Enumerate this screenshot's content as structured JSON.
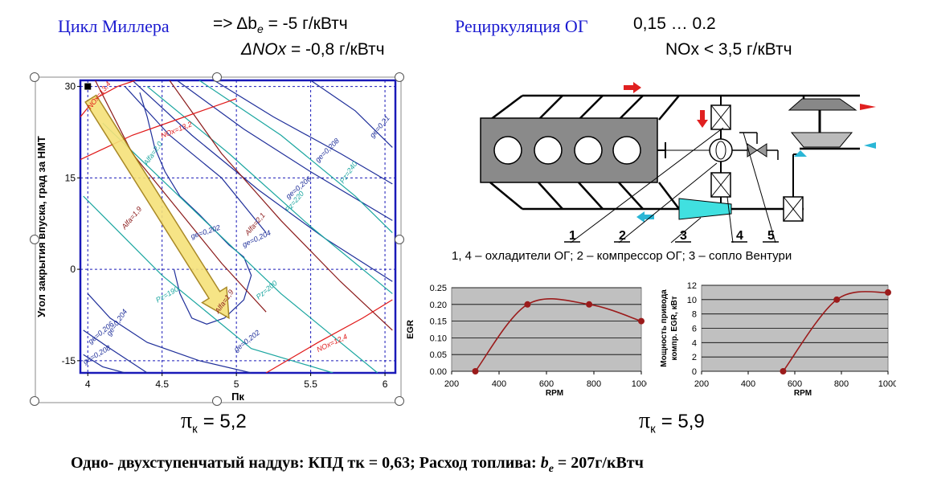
{
  "header": {
    "miller": "Цикл Миллера",
    "miller_arrow": "=>",
    "be_delta": "Δb",
    "be_sub": "e",
    "be_value": "= -5 г/кВтч",
    "nox_delta": "ΔNOx",
    "nox_value": "= -0,8 г/кВтч",
    "egr_title": "Рециркуляция ОГ",
    "egr_range": "0,15 … 0.2",
    "nox_limit": "NOx < 3,5 г/кВтч"
  },
  "diagram": {
    "numbers": [
      "1",
      "2",
      "3",
      "4",
      "5"
    ],
    "caption": "1, 4 – охладители ОГ; 2 – компрессор ОГ; 3 – сопло Вентури"
  },
  "pi_left": {
    "sym": "π",
    "sub": "к",
    "value": "= 5,2"
  },
  "pi_right": {
    "sym": "π",
    "sub": "к",
    "value": "= 5,9"
  },
  "footer": {
    "prefix": "Одно- двухступенчатый наддув: КПД тк = 0,63; Расход топлива: ",
    "b": "b",
    "sub": "e",
    "value": " = 207г/кВтч"
  },
  "chart_data": [
    {
      "type": "line",
      "chart": "contour",
      "xlabel": "Пк",
      "ylabel": "Угол закрытия впуска, град за НМТ",
      "xlim": [
        3.95,
        6.07
      ],
      "ylim": [
        -17,
        31
      ],
      "x_ticks": [
        4,
        4.5,
        5,
        5.5,
        6
      ],
      "x_tick_labels": [
        "4",
        "4.5",
        "5",
        "5.5",
        "6"
      ],
      "y_ticks": [
        30,
        15,
        0,
        -15
      ],
      "y_tick_labels": [
        "30",
        "15",
        "0",
        "-15"
      ],
      "grid": true,
      "colors": {
        "ge": "#1f2f9a",
        "pz": "#1ba6a0",
        "alfa": "#8b1a1a",
        "nox": "#e01818",
        "arrow": "#f6e27a"
      },
      "series": [
        {
          "name": "ge=0,21",
          "group": "ge",
          "x": [
            5.5,
            5.8,
            6.05
          ],
          "y": [
            31,
            26,
            20
          ]
        },
        {
          "name": "ge=0,208",
          "group": "ge",
          "x": [
            4.85,
            5.25,
            5.7,
            6.05
          ],
          "y": [
            31,
            25,
            19,
            14
          ]
        },
        {
          "name": "ge=0,206",
          "group": "ge",
          "x": [
            4.6,
            5.05,
            5.5,
            6.05
          ],
          "y": [
            31,
            23,
            16,
            8
          ]
        },
        {
          "name": "ge=0,204",
          "group": "ge",
          "x": [
            4.3,
            4.7,
            5.15,
            5.6,
            6.05
          ],
          "y": [
            31,
            22,
            13,
            5,
            -2
          ]
        },
        {
          "name": "ge=0,202",
          "group": "ge",
          "x": [
            4.25,
            4.55,
            4.9,
            5.2
          ],
          "y": [
            30,
            22,
            15,
            6
          ]
        },
        {
          "name": "ge=0,204",
          "group": "ge",
          "x": [
            4.0,
            4.15,
            4.4,
            4.75,
            5.1
          ],
          "y": [
            -4,
            -8,
            -12,
            -15,
            -17
          ]
        },
        {
          "name": "ge=0,206",
          "group": "ge",
          "x": [
            3.97,
            4.15,
            4.4
          ],
          "y": [
            -10,
            -13,
            -17
          ]
        },
        {
          "name": "ge=0,208",
          "group": "ge",
          "x": [
            3.97,
            4.1,
            4.25
          ],
          "y": [
            -14,
            -16,
            -17
          ]
        },
        {
          "name": "ge=0,202",
          "group": "ge",
          "x": [
            4.35,
            4.4,
            4.45,
            4.52,
            4.62,
            4.75,
            4.87,
            4.95,
            5.05,
            5.1,
            5.05,
            4.92,
            4.8,
            4.7,
            4.62,
            4.58
          ],
          "y": [
            29,
            25,
            20,
            16,
            12,
            9,
            6,
            4,
            2,
            -1,
            -5,
            -8,
            -9,
            -8,
            -4,
            0
          ]
        },
        {
          "name": "Pz=240",
          "group": "pz",
          "x": [
            4.75,
            5.3,
            5.8,
            6.05
          ],
          "y": [
            31,
            22,
            12,
            6
          ]
        },
        {
          "name": "Pz=220",
          "group": "pz",
          "x": [
            4.4,
            4.95,
            5.5,
            6.05
          ],
          "y": [
            30,
            19,
            7,
            -4
          ]
        },
        {
          "name": "Pz=200",
          "group": "pz",
          "x": [
            4.1,
            4.7,
            5.3,
            5.95
          ],
          "y": [
            24,
            10,
            -4,
            -17
          ]
        },
        {
          "name": "Pz=190",
          "group": "pz",
          "x": [
            3.97,
            4.5,
            5.1,
            5.65
          ],
          "y": [
            12,
            -1,
            -13,
            -17
          ]
        },
        {
          "name": "Alfa=1,9",
          "group": "alfa",
          "x": [
            4.05,
            4.3,
            4.6,
            4.9,
            5.2
          ],
          "y": [
            31,
            19,
            10,
            1,
            -7
          ]
        },
        {
          "name": "Alfa=2,1",
          "group": "alfa",
          "x": [
            4.55,
            4.9,
            5.3,
            5.7,
            6.05
          ],
          "y": [
            31,
            19,
            8,
            -2,
            -10
          ]
        },
        {
          "name": "NOx=13,4",
          "group": "nox",
          "x": [
            3.95,
            4.05,
            4.2,
            4.32
          ],
          "y": [
            25,
            28,
            30,
            31
          ]
        },
        {
          "name": "NOx=13,2",
          "group": "nox",
          "x": [
            3.95,
            4.3,
            4.65,
            5.0
          ],
          "y": [
            18,
            22,
            25,
            28
          ]
        },
        {
          "name": "NOx=12,4",
          "group": "nox",
          "x": [
            5.2,
            5.55,
            5.85,
            6.05
          ],
          "y": [
            -17,
            -12,
            -8,
            -5
          ]
        }
      ],
      "marker": {
        "x": 4,
        "y": 30
      },
      "arrow": {
        "from": {
          "x": 4.02,
          "y": 28
        },
        "to": {
          "x": 4.95,
          "y": -8
        }
      },
      "labels": [
        {
          "text": "NOx=13,4",
          "x": 4.02,
          "y": 26.2,
          "group": "nox",
          "angle": -52
        },
        {
          "text": "NOx=13,2",
          "x": 4.5,
          "y": 21.5,
          "group": "nox",
          "angle": -22
        },
        {
          "text": "NOx=12,4",
          "x": 5.55,
          "y": -13.6,
          "group": "nox",
          "angle": -25
        },
        {
          "text": "ge=0,21",
          "x": 5.92,
          "y": 21.5,
          "group": "ge",
          "angle": -50
        },
        {
          "text": "ge=0,208",
          "x": 5.55,
          "y": 17.5,
          "group": "ge",
          "angle": -45
        },
        {
          "text": "ge=0,206",
          "x": 5.35,
          "y": 11.5,
          "group": "ge",
          "angle": -40
        },
        {
          "text": "ge=0,204",
          "x": 5.05,
          "y": 3.6,
          "group": "ge",
          "angle": -25
        },
        {
          "text": "ge=0,202",
          "x": 4.7,
          "y": 5,
          "group": "ge",
          "angle": -18
        },
        {
          "text": "ge=0,202",
          "x": 5.0,
          "y": -13.6,
          "group": "ge",
          "angle": -38
        },
        {
          "text": "ge=0,204",
          "x": 4.15,
          "y": -11,
          "group": "ge",
          "angle": -55
        },
        {
          "text": "ge=0,206",
          "x": 4.02,
          "y": -12.3,
          "group": "ge",
          "angle": -40
        },
        {
          "text": "ge=0,208",
          "x": 3.98,
          "y": -15.6,
          "group": "ge",
          "angle": -30
        },
        {
          "text": "Pz=240",
          "x": 5.72,
          "y": 14,
          "group": "pz",
          "angle": -55
        },
        {
          "text": "Pz=220",
          "x": 5.35,
          "y": 9.3,
          "group": "pz",
          "angle": -50
        },
        {
          "text": "Pz=200",
          "x": 5.15,
          "y": -5,
          "group": "pz",
          "angle": -40
        },
        {
          "text": "Pz=190",
          "x": 4.47,
          "y": -5.5,
          "group": "pz",
          "angle": -30
        },
        {
          "text": "Alfa=1,9",
          "x": 4.25,
          "y": 6.5,
          "group": "alfa",
          "angle": -50
        },
        {
          "text": "Alfa=2,1",
          "x": 5.08,
          "y": 5.5,
          "group": "alfa",
          "angle": -50
        },
        {
          "text": "Alfa=1,9",
          "x": 4.88,
          "y": -7.3,
          "group": "alfa",
          "angle": -55
        },
        {
          "text": "Alfa=2,0",
          "x": 4.4,
          "y": 17,
          "group": "pz",
          "angle": -55
        }
      ]
    },
    {
      "type": "line",
      "ylabel": "EGR",
      "xlabel": "RPM",
      "x": [
        300,
        520,
        780,
        1000
      ],
      "y": [
        0.0,
        0.2,
        0.2,
        0.15
      ],
      "xlim": [
        200,
        1000
      ],
      "ylim": [
        0,
        0.25
      ],
      "x_ticks": [
        200,
        400,
        600,
        800,
        1000
      ],
      "x_tick_labels": [
        "200",
        "400",
        "600",
        "800",
        "1000"
      ],
      "y_ticks": [
        0,
        0.05,
        0.1,
        0.15,
        0.2,
        0.25
      ],
      "y_tick_labels": [
        "0.00",
        "0.05",
        "0.10",
        "0.15",
        "0.20",
        "0.25"
      ],
      "grid": true,
      "line_color": "#9b1b1b",
      "bg_color": "#c0c0c0"
    },
    {
      "type": "line",
      "ylabel": "Мощность привода компр. EGR, кВт",
      "xlabel": "RPM",
      "x": [
        550,
        780,
        1000
      ],
      "y": [
        0,
        10,
        11
      ],
      "xlim": [
        200,
        1000
      ],
      "ylim": [
        0,
        12
      ],
      "x_ticks": [
        200,
        400,
        600,
        800,
        1000
      ],
      "x_tick_labels": [
        "200",
        "400",
        "600",
        "800",
        "1000"
      ],
      "y_ticks": [
        0,
        2,
        4,
        6,
        8,
        10,
        12
      ],
      "y_tick_labels": [
        "0",
        "2",
        "4",
        "6",
        "8",
        "10",
        "12"
      ],
      "grid": true,
      "line_color": "#9b1b1b",
      "bg_color": "#c0c0c0"
    }
  ]
}
